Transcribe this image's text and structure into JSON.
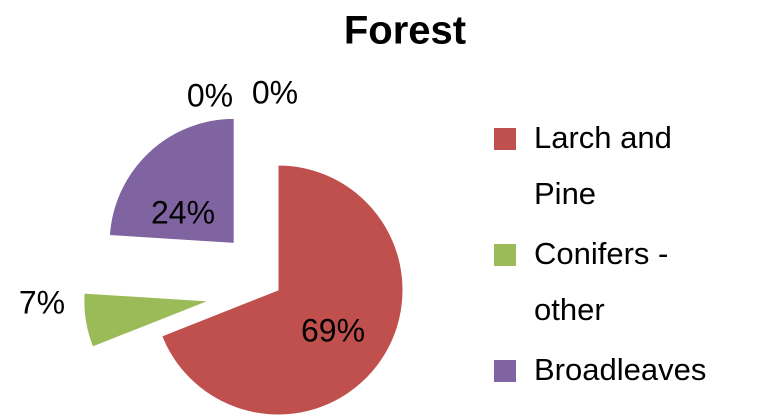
{
  "chart_data": {
    "type": "pie",
    "title": "Forest",
    "categories": [
      "Larch and Pine",
      "Conifers - other",
      "Broadleaves",
      null,
      null
    ],
    "values": [
      69,
      7,
      24,
      0,
      0
    ],
    "value_labels": [
      "69%",
      "7%",
      "24%",
      "0%",
      "0%"
    ],
    "colors": [
      "#c0504d",
      "#9bbb59",
      "#8064a2",
      "#4bacc6",
      "#f79646"
    ],
    "legend": "right"
  }
}
